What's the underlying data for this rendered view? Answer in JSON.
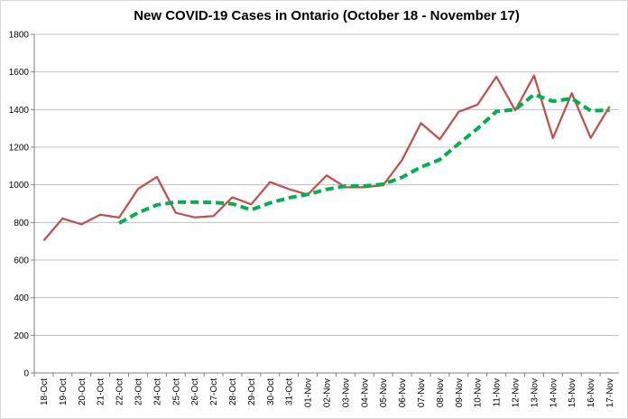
{
  "chart_data": {
    "type": "line",
    "title": "New COVID-19 Cases in Ontario (October 18 - November 17)",
    "categories": [
      "18-Oct",
      "19-Oct",
      "20-Oct",
      "21-Oct",
      "22-Oct",
      "23-Oct",
      "24-Oct",
      "25-Oct",
      "26-Oct",
      "27-Oct",
      "28-Oct",
      "29-Oct",
      "30-Oct",
      "31-Oct",
      "01-Nov",
      "02-Nov",
      "03-Nov",
      "04-Nov",
      "05-Nov",
      "06-Nov",
      "07-Nov",
      "08-Nov",
      "09-Nov",
      "10-Nov",
      "11-Nov",
      "12-Nov",
      "13-Nov",
      "14-Nov",
      "15-Nov",
      "16-Nov",
      "17-Nov"
    ],
    "series": [
      {
        "color": "#c0504d",
        "style": "solid",
        "values": [
          704,
          821,
          790,
          841,
          826,
          978,
          1042,
          851,
          827,
          834,
          934,
          896,
          1015,
          977,
          948,
          1050,
          987,
          987,
          998,
          1132,
          1328,
          1242,
          1388,
          1426,
          1575,
          1396,
          1581,
          1248,
          1487,
          1249,
          1417
        ]
      },
      {
        "color": "#00b050",
        "style": "dashed",
        "values": [
          null,
          null,
          null,
          null,
          796,
          852,
          893,
          908,
          908,
          906,
          899,
          867,
          904,
          931,
          949,
          976,
          993,
          994,
          1003,
          1040,
          1094,
          1134,
          1218,
          1299,
          1390,
          1400,
          1480,
          1444,
          1459,
          1394,
          1396
        ]
      }
    ],
    "ylim": [
      0,
      1800
    ],
    "yticks": [
      0,
      200,
      400,
      600,
      800,
      1000,
      1200,
      1400,
      1600,
      1800
    ],
    "grid": true
  }
}
